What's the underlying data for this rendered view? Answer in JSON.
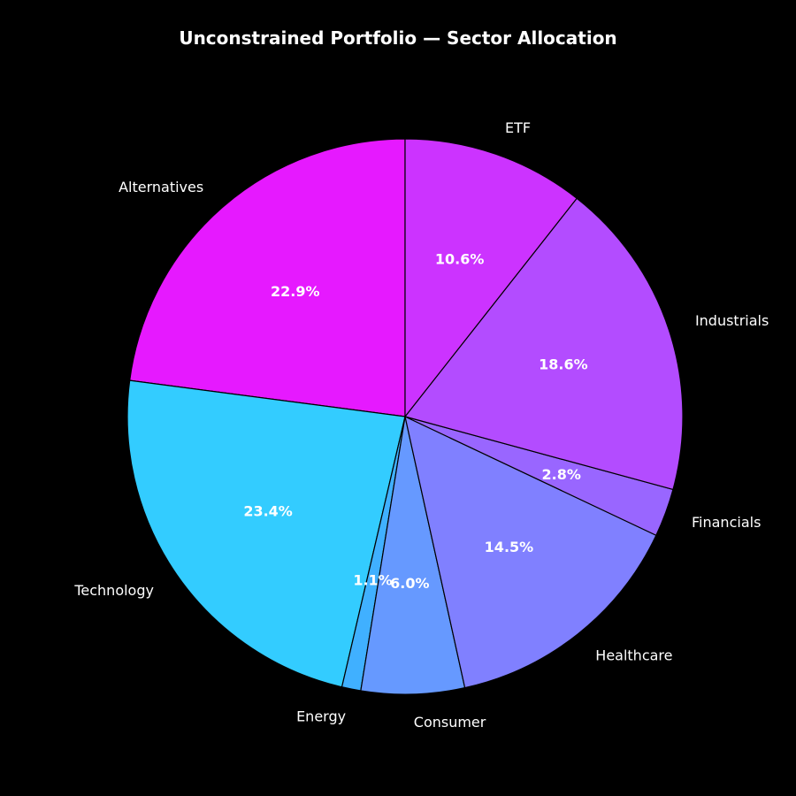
{
  "chart_data": {
    "type": "pie",
    "title": "Unconstrained Portfolio — Sector Allocation",
    "start_angle_deg": 90,
    "direction": "counterclockwise",
    "legend": "none",
    "background": "#000000",
    "slices": [
      {
        "label": "Alternatives",
        "value": 22.9,
        "pct_label": "22.9%",
        "color": "#e619ff"
      },
      {
        "label": "Technology",
        "value": 23.4,
        "pct_label": "23.4%",
        "color": "#33ccff"
      },
      {
        "label": "Energy",
        "value": 1.1,
        "pct_label": "1.1%",
        "color": "#40b0ff"
      },
      {
        "label": "Consumer",
        "value": 6.0,
        "pct_label": "6.0%",
        "color": "#6699ff"
      },
      {
        "label": "Healthcare",
        "value": 14.5,
        "pct_label": "14.5%",
        "color": "#8080ff"
      },
      {
        "label": "Financials",
        "value": 2.8,
        "pct_label": "2.8%",
        "color": "#9966ff"
      },
      {
        "label": "Industrials",
        "value": 18.6,
        "pct_label": "18.6%",
        "color": "#b34cff"
      },
      {
        "label": "ETF",
        "value": 10.6,
        "pct_label": "10.6%",
        "color": "#cc33ff"
      }
    ]
  }
}
